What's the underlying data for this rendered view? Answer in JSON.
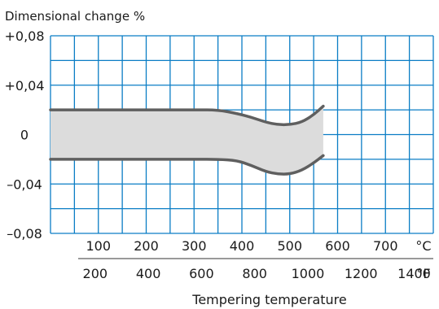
{
  "chart_data": {
    "type": "area",
    "title": "Dimensional change %",
    "xlabel": "Tempering temperature",
    "x_unit": "°C",
    "x_unit_secondary": "°F",
    "xlim": [
      0,
      800
    ],
    "ylim": [
      -0.08,
      0.08
    ],
    "x_ticks": [
      100,
      200,
      300,
      400,
      500,
      600,
      700
    ],
    "x_tick_labels": [
      "100",
      "200",
      "300",
      "400",
      "500",
      "600",
      "700"
    ],
    "x2_ticks": [
      200,
      400,
      600,
      800,
      1000,
      1200,
      1400
    ],
    "x2_tick_labels": [
      "200",
      "400",
      "600",
      "800",
      "1000",
      "1200",
      "1400"
    ],
    "y_ticks": [
      0.08,
      0.04,
      0,
      -0.04,
      -0.08
    ],
    "y_tick_labels": [
      "+0,08",
      "+0,04",
      "0",
      "–0,04",
      "–0,08"
    ],
    "grid": true,
    "series": [
      {
        "values": [
          [
            0,
            0.02
          ],
          [
            150,
            0.02
          ],
          [
            300,
            0.02
          ],
          [
            350,
            0.02
          ],
          [
            390,
            0.017
          ],
          [
            420,
            0.014
          ],
          [
            450,
            0.01
          ],
          [
            475,
            0.008
          ],
          [
            500,
            0.008
          ],
          [
            525,
            0.01
          ],
          [
            550,
            0.016
          ],
          [
            570,
            0.023
          ]
        ]
      },
      {
        "values": [
          [
            0,
            -0.02
          ],
          [
            150,
            -0.02
          ],
          [
            300,
            -0.02
          ],
          [
            350,
            -0.02
          ],
          [
            390,
            -0.021
          ],
          [
            420,
            -0.025
          ],
          [
            450,
            -0.03
          ],
          [
            475,
            -0.032
          ],
          [
            500,
            -0.032
          ],
          [
            525,
            -0.029
          ],
          [
            550,
            -0.023
          ],
          [
            570,
            -0.017
          ]
        ]
      }
    ],
    "band_fill": "#dcdcdc",
    "colors": {
      "grid": "#0a7dc5",
      "curve": "#5f5f5f",
      "text": "#1a1a1a"
    }
  }
}
